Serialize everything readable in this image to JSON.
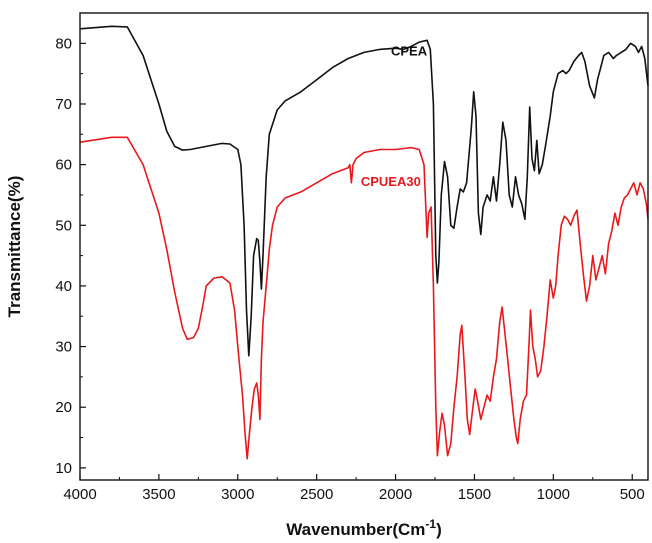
{
  "chart_data": {
    "type": "line",
    "xlabel": "Wavenumber(Cm",
    "xlabel_superscript": "-1",
    "xlabel_suffix": ")",
    "ylabel": "Transmittance(%)",
    "xlim": [
      4000,
      400
    ],
    "ylim": [
      8,
      85
    ],
    "x_reversed": true,
    "x_ticks": [
      4000,
      3500,
      3000,
      2500,
      2000,
      1500,
      1000,
      500
    ],
    "y_ticks": [
      10,
      20,
      30,
      40,
      50,
      60,
      70,
      80
    ],
    "grid": false,
    "series": [
      {
        "name": "CPEA",
        "color": "#111111",
        "points": [
          [
            4000,
            82.4
          ],
          [
            3800,
            82.8
          ],
          [
            3700,
            82.7
          ],
          [
            3600,
            78
          ],
          [
            3500,
            70
          ],
          [
            3450,
            65.5
          ],
          [
            3400,
            63
          ],
          [
            3350,
            62.4
          ],
          [
            3300,
            62.5
          ],
          [
            3200,
            63
          ],
          [
            3100,
            63.5
          ],
          [
            3050,
            63.4
          ],
          [
            3000,
            62.5
          ],
          [
            2980,
            60
          ],
          [
            2960,
            50
          ],
          [
            2945,
            36
          ],
          [
            2930,
            28.5
          ],
          [
            2915,
            35
          ],
          [
            2900,
            45
          ],
          [
            2880,
            47.8
          ],
          [
            2870,
            47.5
          ],
          [
            2860,
            44
          ],
          [
            2850,
            39.5
          ],
          [
            2840,
            45
          ],
          [
            2820,
            58
          ],
          [
            2800,
            65
          ],
          [
            2750,
            69
          ],
          [
            2700,
            70.5
          ],
          [
            2600,
            72
          ],
          [
            2500,
            74
          ],
          [
            2400,
            76
          ],
          [
            2300,
            77.5
          ],
          [
            2200,
            78.5
          ],
          [
            2100,
            79
          ],
          [
            2000,
            79.2
          ],
          [
            1950,
            79
          ],
          [
            1900,
            79.5
          ],
          [
            1850,
            80.2
          ],
          [
            1800,
            80.5
          ],
          [
            1780,
            79
          ],
          [
            1760,
            70
          ],
          [
            1745,
            45
          ],
          [
            1735,
            40.5
          ],
          [
            1725,
            44
          ],
          [
            1710,
            55
          ],
          [
            1690,
            60.5
          ],
          [
            1670,
            58
          ],
          [
            1650,
            50
          ],
          [
            1630,
            49.5
          ],
          [
            1610,
            53
          ],
          [
            1590,
            56
          ],
          [
            1570,
            55.5
          ],
          [
            1550,
            57
          ],
          [
            1520,
            66
          ],
          [
            1505,
            72
          ],
          [
            1490,
            68
          ],
          [
            1475,
            52
          ],
          [
            1460,
            48.5
          ],
          [
            1445,
            53
          ],
          [
            1420,
            55
          ],
          [
            1400,
            54
          ],
          [
            1380,
            58
          ],
          [
            1360,
            54
          ],
          [
            1340,
            60
          ],
          [
            1320,
            67
          ],
          [
            1300,
            64
          ],
          [
            1280,
            55
          ],
          [
            1260,
            53
          ],
          [
            1240,
            58
          ],
          [
            1220,
            55
          ],
          [
            1200,
            53.5
          ],
          [
            1180,
            51
          ],
          [
            1165,
            58
          ],
          [
            1150,
            69.5
          ],
          [
            1135,
            61
          ],
          [
            1120,
            59
          ],
          [
            1105,
            64
          ],
          [
            1090,
            58.5
          ],
          [
            1070,
            60
          ],
          [
            1050,
            63
          ],
          [
            1020,
            68
          ],
          [
            1000,
            72
          ],
          [
            970,
            75
          ],
          [
            940,
            75.5
          ],
          [
            920,
            75
          ],
          [
            900,
            75.5
          ],
          [
            870,
            77
          ],
          [
            840,
            78
          ],
          [
            820,
            78.5
          ],
          [
            800,
            77
          ],
          [
            770,
            73
          ],
          [
            740,
            71
          ],
          [
            720,
            74
          ],
          [
            700,
            76
          ],
          [
            680,
            78
          ],
          [
            650,
            78.5
          ],
          [
            620,
            77.5
          ],
          [
            600,
            78
          ],
          [
            570,
            78.5
          ],
          [
            540,
            79
          ],
          [
            510,
            80
          ],
          [
            480,
            79.5
          ],
          [
            460,
            78.5
          ],
          [
            440,
            79.5
          ],
          [
            420,
            77.5
          ],
          [
            400,
            73
          ]
        ]
      },
      {
        "name": "CPUEA30",
        "color": "#e8191c",
        "points": [
          [
            4000,
            63.7
          ],
          [
            3800,
            64.5
          ],
          [
            3700,
            64.5
          ],
          [
            3600,
            60
          ],
          [
            3500,
            52
          ],
          [
            3450,
            46
          ],
          [
            3400,
            39
          ],
          [
            3350,
            33
          ],
          [
            3320,
            31.2
          ],
          [
            3280,
            31.5
          ],
          [
            3250,
            33
          ],
          [
            3220,
            37
          ],
          [
            3200,
            40
          ],
          [
            3150,
            41.3
          ],
          [
            3100,
            41.5
          ],
          [
            3050,
            40.5
          ],
          [
            3020,
            36
          ],
          [
            3000,
            30
          ],
          [
            2985,
            26
          ],
          [
            2970,
            22
          ],
          [
            2955,
            16
          ],
          [
            2940,
            11.5
          ],
          [
            2925,
            16
          ],
          [
            2910,
            20
          ],
          [
            2895,
            23
          ],
          [
            2880,
            24
          ],
          [
            2870,
            22
          ],
          [
            2860,
            18
          ],
          [
            2850,
            28
          ],
          [
            2840,
            34
          ],
          [
            2820,
            40
          ],
          [
            2800,
            46
          ],
          [
            2780,
            50
          ],
          [
            2750,
            53
          ],
          [
            2700,
            54.5
          ],
          [
            2600,
            55.5
          ],
          [
            2500,
            57
          ],
          [
            2400,
            58.5
          ],
          [
            2300,
            59.5
          ],
          [
            2290,
            60
          ],
          [
            2280,
            57
          ],
          [
            2270,
            60
          ],
          [
            2250,
            61
          ],
          [
            2200,
            62
          ],
          [
            2100,
            62.5
          ],
          [
            2000,
            62.5
          ],
          [
            1900,
            62.8
          ],
          [
            1850,
            62.5
          ],
          [
            1820,
            60
          ],
          [
            1800,
            48
          ],
          [
            1790,
            52
          ],
          [
            1775,
            53
          ],
          [
            1760,
            40
          ],
          [
            1745,
            20
          ],
          [
            1735,
            12
          ],
          [
            1720,
            16
          ],
          [
            1705,
            19
          ],
          [
            1690,
            17
          ],
          [
            1670,
            12
          ],
          [
            1650,
            14
          ],
          [
            1630,
            20
          ],
          [
            1610,
            25
          ],
          [
            1590,
            32
          ],
          [
            1580,
            33.5
          ],
          [
            1560,
            25
          ],
          [
            1545,
            18
          ],
          [
            1530,
            15.5
          ],
          [
            1510,
            20
          ],
          [
            1495,
            23
          ],
          [
            1480,
            21
          ],
          [
            1460,
            18
          ],
          [
            1440,
            20
          ],
          [
            1420,
            22
          ],
          [
            1400,
            21
          ],
          [
            1380,
            25
          ],
          [
            1360,
            28
          ],
          [
            1340,
            34
          ],
          [
            1325,
            36.5
          ],
          [
            1310,
            33
          ],
          [
            1290,
            28
          ],
          [
            1270,
            23
          ],
          [
            1250,
            18
          ],
          [
            1235,
            15
          ],
          [
            1225,
            14
          ],
          [
            1210,
            18
          ],
          [
            1190,
            21
          ],
          [
            1170,
            22
          ],
          [
            1155,
            30
          ],
          [
            1145,
            36
          ],
          [
            1130,
            30
          ],
          [
            1115,
            28
          ],
          [
            1100,
            25
          ],
          [
            1080,
            26
          ],
          [
            1060,
            30
          ],
          [
            1040,
            35
          ],
          [
            1020,
            41
          ],
          [
            1000,
            38
          ],
          [
            985,
            40
          ],
          [
            970,
            45
          ],
          [
            950,
            50
          ],
          [
            930,
            51.5
          ],
          [
            910,
            51
          ],
          [
            890,
            50
          ],
          [
            870,
            51.5
          ],
          [
            850,
            52.5
          ],
          [
            830,
            47
          ],
          [
            810,
            42
          ],
          [
            790,
            37.5
          ],
          [
            770,
            40
          ],
          [
            750,
            45
          ],
          [
            730,
            41
          ],
          [
            710,
            43
          ],
          [
            690,
            45
          ],
          [
            670,
            42
          ],
          [
            650,
            47
          ],
          [
            630,
            49
          ],
          [
            610,
            52
          ],
          [
            590,
            50
          ],
          [
            570,
            53
          ],
          [
            550,
            54.5
          ],
          [
            530,
            55
          ],
          [
            510,
            56
          ],
          [
            490,
            57
          ],
          [
            470,
            55
          ],
          [
            450,
            57
          ],
          [
            430,
            56
          ],
          [
            410,
            53.5
          ],
          [
            400,
            51
          ]
        ]
      }
    ],
    "series_labels": [
      {
        "text": "CPEA",
        "color": "#111111",
        "x": 1800,
        "y": 78,
        "anchor": "end"
      },
      {
        "text": "CPUEA30",
        "color": "#e8191c",
        "x": 1840,
        "y": 56.5,
        "anchor": "end"
      }
    ]
  }
}
